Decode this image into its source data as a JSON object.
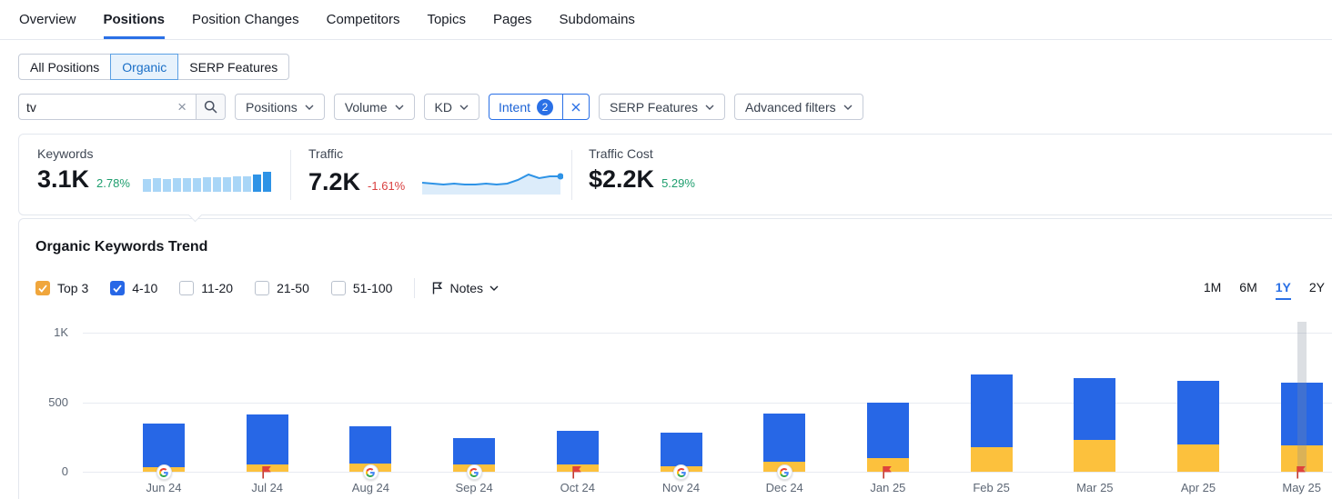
{
  "nav": {
    "tabs": [
      {
        "label": "Overview",
        "active": false
      },
      {
        "label": "Positions",
        "active": true
      },
      {
        "label": "Position Changes",
        "active": false
      },
      {
        "label": "Competitors",
        "active": false
      },
      {
        "label": "Topics",
        "active": false
      },
      {
        "label": "Pages",
        "active": false
      },
      {
        "label": "Subdomains",
        "active": false
      }
    ]
  },
  "subtabs": [
    {
      "label": "All Positions",
      "active": false
    },
    {
      "label": "Organic",
      "active": true
    },
    {
      "label": "SERP Features",
      "active": false
    }
  ],
  "filters": {
    "search": {
      "value": "tv"
    },
    "dropdowns_left": [
      {
        "label": "Positions"
      },
      {
        "label": "Volume"
      },
      {
        "label": "KD"
      }
    ],
    "intent": {
      "label": "Intent",
      "count": "2"
    },
    "dropdowns_right": [
      {
        "label": "SERP Features"
      },
      {
        "label": "Advanced filters"
      }
    ]
  },
  "stats": {
    "keywords": {
      "label": "Keywords",
      "value": "3.1K",
      "change": "2.78%",
      "direction": "up",
      "sparkline": {
        "type": "bar",
        "values": [
          14,
          15,
          14,
          15,
          15,
          15,
          16,
          16,
          16,
          17,
          17,
          19,
          22
        ],
        "dark_from": 11,
        "color_light": "#a9d6f7",
        "color_dark": "#2e93e6"
      }
    },
    "traffic": {
      "label": "Traffic",
      "value": "7.2K",
      "change": "-1.61%",
      "direction": "down",
      "sparkline": {
        "type": "line",
        "values": [
          13,
          12,
          11,
          12,
          11,
          11,
          12,
          11,
          12,
          16,
          22,
          18,
          20,
          20
        ],
        "line_color": "#2e93e6",
        "fill_color": "#dcecfa"
      }
    },
    "traffic_cost": {
      "label": "Traffic Cost",
      "value": "$2.2K",
      "change": "5.29%",
      "direction": "up"
    }
  },
  "trend": {
    "title": "Organic Keywords Trend",
    "legend": [
      {
        "label": "Top 3",
        "checked": true,
        "color": "#f0a63c"
      },
      {
        "label": "4-10",
        "checked": true,
        "color": "#2767e6"
      },
      {
        "label": "11-20",
        "checked": false,
        "color": null
      },
      {
        "label": "21-50",
        "checked": false,
        "color": null
      },
      {
        "label": "51-100",
        "checked": false,
        "color": null
      }
    ],
    "notes": {
      "label": "Notes"
    },
    "ranges": [
      {
        "label": "1M",
        "active": false
      },
      {
        "label": "6M",
        "active": false
      },
      {
        "label": "1Y",
        "active": true
      },
      {
        "label": "2Y",
        "active": false
      }
    ]
  },
  "chart_data": {
    "type": "bar",
    "stacked": true,
    "title": "Organic Keywords Trend",
    "categories": [
      "Jun 24",
      "Jul 24",
      "Aug 24",
      "Sep 24",
      "Oct 24",
      "Nov 24",
      "Dec 24",
      "Jan 25",
      "Feb 25",
      "Mar 25",
      "Apr 25",
      "May 25"
    ],
    "series": [
      {
        "name": "Top 3",
        "color": "#fcc13d",
        "values": [
          35,
          50,
          60,
          50,
          55,
          40,
          75,
          100,
          175,
          230,
          195,
          190
        ]
      },
      {
        "name": "4-10",
        "color": "#2767e6",
        "values": [
          315,
          360,
          270,
          190,
          245,
          245,
          345,
          400,
          525,
          445,
          455,
          450
        ]
      }
    ],
    "markers": [
      "google",
      "note",
      "google",
      "google",
      "note",
      "google",
      "google",
      "note",
      null,
      null,
      null,
      "note"
    ],
    "y_ticks": [
      {
        "label": "1K",
        "value": 1000
      },
      {
        "label": "500",
        "value": 500
      },
      {
        "label": "0",
        "value": 0
      }
    ],
    "ylim": [
      0,
      1000
    ],
    "grid": true,
    "legend_position": "top",
    "hover_index": 11
  },
  "icons": {
    "search": "magnifier",
    "clear_search": "x",
    "dropdown": "chevron-down",
    "intent_clear": "x",
    "notes": "flag-outline",
    "marker_google": "google-g-circle",
    "marker_note": "red-flag",
    "checkbox_check": "check"
  }
}
